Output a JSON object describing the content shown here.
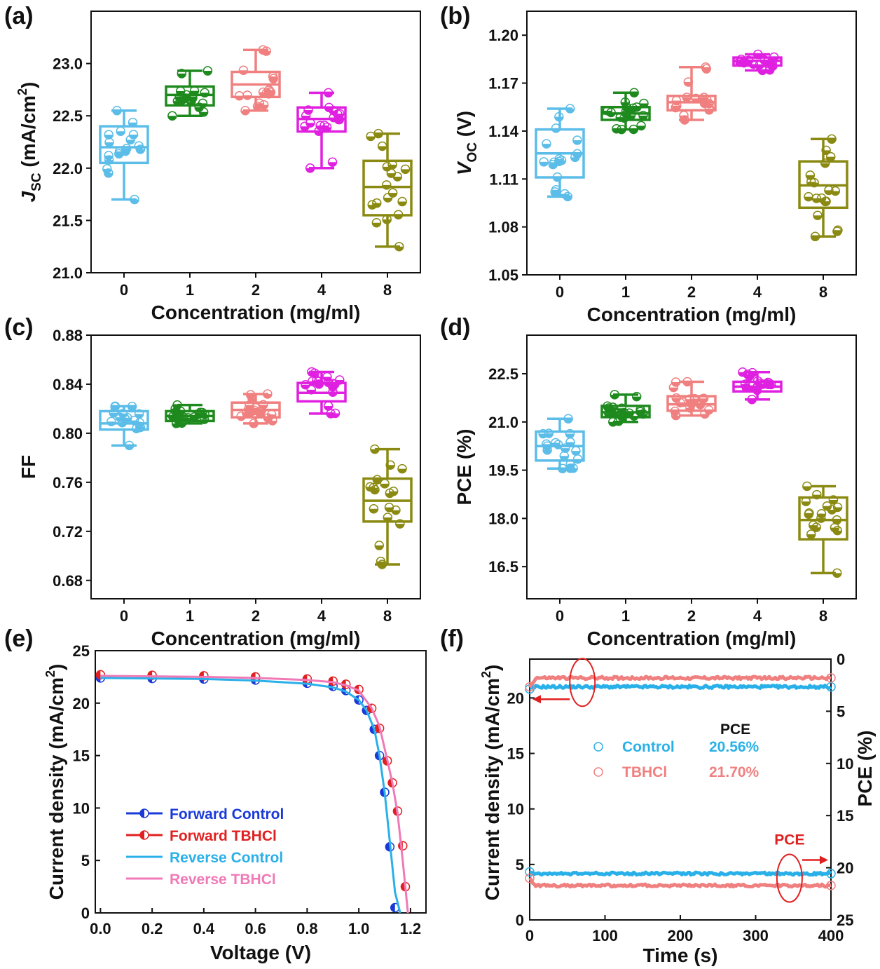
{
  "chart_data": [
    {
      "id": "a",
      "type": "box",
      "panel_label": "(a)",
      "xlabel": "Concentration (mg/ml)",
      "ylabel": "J_SC (mA/cm^2)",
      "ylabel_parts": {
        "main": "J",
        "sub": "SC",
        "unit_before": "(mA/cm",
        "sup": "2",
        "unit_after": ")"
      },
      "categories": [
        "0",
        "1",
        "2",
        "4",
        "8"
      ],
      "colors": [
        "#5bbde8",
        "#1e8a1e",
        "#f08080",
        "#e020e0",
        "#8a8a12"
      ],
      "ylim": [
        21.0,
        23.5
      ],
      "yticks": [
        "21.0",
        "21.5",
        "22.0",
        "22.5",
        "23.0"
      ],
      "ytick_values": [
        21.0,
        21.5,
        22.0,
        22.5,
        23.0
      ],
      "boxes": [
        {
          "min": 21.7,
          "q1": 22.05,
          "median": 22.2,
          "q3": 22.4,
          "max": 22.55
        },
        {
          "min": 22.5,
          "q1": 22.6,
          "median": 22.7,
          "q3": 22.78,
          "max": 22.93
        },
        {
          "min": 22.55,
          "q1": 22.68,
          "median": 22.8,
          "q3": 22.92,
          "max": 23.13
        },
        {
          "min": 22.0,
          "q1": 22.35,
          "median": 22.47,
          "q3": 22.58,
          "max": 22.72
        },
        {
          "min": 21.25,
          "q1": 21.55,
          "median": 21.82,
          "q3": 22.07,
          "max": 22.33
        }
      ]
    },
    {
      "id": "b",
      "type": "box",
      "panel_label": "(b)",
      "xlabel": "Concentration (mg/ml)",
      "ylabel": "V_OC (V)",
      "ylabel_parts": {
        "main": "V",
        "sub": "OC",
        "unit_before": " (V)",
        "sup": "",
        "unit_after": ""
      },
      "categories": [
        "0",
        "1",
        "2",
        "4",
        "8"
      ],
      "colors": [
        "#5bbde8",
        "#1e8a1e",
        "#f08080",
        "#e020e0",
        "#8a8a12"
      ],
      "ylim": [
        1.05,
        1.215
      ],
      "yticks": [
        "1.05",
        "1.08",
        "1.11",
        "1.14",
        "1.17",
        "1.20"
      ],
      "ytick_values": [
        1.05,
        1.08,
        1.11,
        1.14,
        1.17,
        1.2
      ],
      "boxes": [
        {
          "min": 1.099,
          "q1": 1.111,
          "median": 1.126,
          "q3": 1.141,
          "max": 1.154
        },
        {
          "min": 1.141,
          "q1": 1.147,
          "median": 1.151,
          "q3": 1.155,
          "max": 1.164
        },
        {
          "min": 1.147,
          "q1": 1.153,
          "median": 1.158,
          "q3": 1.162,
          "max": 1.18
        },
        {
          "min": 1.178,
          "q1": 1.181,
          "median": 1.184,
          "q3": 1.186,
          "max": 1.188
        },
        {
          "min": 1.074,
          "q1": 1.092,
          "median": 1.106,
          "q3": 1.121,
          "max": 1.135
        }
      ]
    },
    {
      "id": "c",
      "type": "box",
      "panel_label": "(c)",
      "xlabel": "Concentration (mg/ml)",
      "ylabel": "FF",
      "ylabel_parts": {
        "main": "FF",
        "sub": "",
        "unit_before": "",
        "sup": "",
        "unit_after": ""
      },
      "categories": [
        "0",
        "1",
        "2",
        "4",
        "8"
      ],
      "colors": [
        "#5bbde8",
        "#1e8a1e",
        "#f08080",
        "#e020e0",
        "#8a8a12"
      ],
      "ylim": [
        0.665,
        0.88
      ],
      "yticks": [
        "0.68",
        "0.72",
        "0.76",
        "0.80",
        "0.84",
        "0.88"
      ],
      "ytick_values": [
        0.68,
        0.72,
        0.76,
        0.8,
        0.84,
        0.88
      ],
      "boxes": [
        {
          "min": 0.79,
          "q1": 0.803,
          "median": 0.808,
          "q3": 0.818,
          "max": 0.822
        },
        {
          "min": 0.808,
          "q1": 0.81,
          "median": 0.814,
          "q3": 0.818,
          "max": 0.823
        },
        {
          "min": 0.808,
          "q1": 0.813,
          "median": 0.819,
          "q3": 0.825,
          "max": 0.832
        },
        {
          "min": 0.816,
          "q1": 0.826,
          "median": 0.833,
          "q3": 0.841,
          "max": 0.85
        },
        {
          "min": 0.693,
          "q1": 0.728,
          "median": 0.745,
          "q3": 0.763,
          "max": 0.787
        }
      ]
    },
    {
      "id": "d",
      "type": "box",
      "panel_label": "(d)",
      "xlabel": "Concentration (mg/ml)",
      "ylabel": "PCE (%)",
      "ylabel_parts": {
        "main": "PCE (%)",
        "sub": "",
        "unit_before": "",
        "sup": "",
        "unit_after": ""
      },
      "categories": [
        "0",
        "1",
        "2",
        "4",
        "8"
      ],
      "colors": [
        "#5bbde8",
        "#1e8a1e",
        "#f08080",
        "#e020e0",
        "#8a8a12"
      ],
      "ylim": [
        15.5,
        23.7
      ],
      "yticks": [
        "16.5",
        "18.0",
        "19.5",
        "21.0",
        "22.5"
      ],
      "ytick_values": [
        16.5,
        18.0,
        19.5,
        21.0,
        22.5
      ],
      "boxes": [
        {
          "min": 19.55,
          "q1": 19.8,
          "median": 20.25,
          "q3": 20.7,
          "max": 21.1
        },
        {
          "min": 21.0,
          "q1": 21.15,
          "median": 21.3,
          "q3": 21.5,
          "max": 21.85
        },
        {
          "min": 21.2,
          "q1": 21.35,
          "median": 21.55,
          "q3": 21.8,
          "max": 22.25
        },
        {
          "min": 21.7,
          "q1": 21.95,
          "median": 22.1,
          "q3": 22.25,
          "max": 22.55
        },
        {
          "min": 16.3,
          "q1": 17.35,
          "median": 17.95,
          "q3": 18.65,
          "max": 19.0
        }
      ]
    },
    {
      "id": "e",
      "type": "line",
      "panel_label": "(e)",
      "xlabel": "Voltage (V)",
      "ylabel": "Current density (mA/cm^2)",
      "ylabel_parts": {
        "main": "Current density (mA/cm",
        "sup": "2",
        "unit_after": ")"
      },
      "xlim": [
        -0.02,
        1.26
      ],
      "ylim": [
        0,
        25
      ],
      "xticks": [
        "0.0",
        "0.2",
        "0.4",
        "0.6",
        "0.8",
        "1.0",
        "1.2"
      ],
      "xtick_values": [
        0.0,
        0.2,
        0.4,
        0.6,
        0.8,
        1.0,
        1.2
      ],
      "yticks": [
        "0",
        "5",
        "10",
        "15",
        "20",
        "25"
      ],
      "ytick_values": [
        0,
        5,
        10,
        15,
        20,
        25
      ],
      "series": [
        {
          "name": "Forward Control",
          "color": "#1a3ad8",
          "style": "markers",
          "x": [
            0.0,
            0.2,
            0.4,
            0.6,
            0.8,
            0.9,
            0.95,
            1.0,
            1.03,
            1.06,
            1.08,
            1.1,
            1.12,
            1.14
          ],
          "y": [
            22.4,
            22.35,
            22.3,
            22.2,
            21.9,
            21.6,
            21.2,
            20.3,
            19.3,
            17.5,
            15.0,
            11.5,
            6.3,
            0.5
          ]
        },
        {
          "name": "Forward TBHCl",
          "color": "#e02020",
          "style": "markers",
          "x": [
            0.0,
            0.2,
            0.4,
            0.6,
            0.8,
            0.9,
            0.95,
            1.0,
            1.05,
            1.08,
            1.11,
            1.13,
            1.15,
            1.17,
            1.18
          ],
          "y": [
            22.7,
            22.65,
            22.6,
            22.5,
            22.3,
            22.1,
            21.8,
            21.3,
            19.5,
            17.6,
            14.5,
            12.4,
            9.7,
            6.4,
            2.5
          ]
        },
        {
          "name": "Reverse Control",
          "color": "#2ab0e8",
          "style": "line",
          "x": [
            0.0,
            0.2,
            0.4,
            0.6,
            0.8,
            0.9,
            0.95,
            1.0,
            1.03,
            1.06,
            1.08,
            1.1,
            1.12,
            1.14,
            1.16
          ],
          "y": [
            22.4,
            22.35,
            22.3,
            22.15,
            21.85,
            21.5,
            21.1,
            20.3,
            19.3,
            17.5,
            15.0,
            11.5,
            6.8,
            2.0,
            0.0
          ]
        },
        {
          "name": "Reverse TBHCl",
          "color": "#f07ab8",
          "style": "line",
          "x": [
            0.0,
            0.2,
            0.4,
            0.6,
            0.8,
            0.9,
            0.95,
            1.0,
            1.05,
            1.08,
            1.11,
            1.13,
            1.15,
            1.17,
            1.19
          ],
          "y": [
            22.6,
            22.55,
            22.5,
            22.4,
            22.2,
            22.0,
            21.7,
            21.2,
            19.5,
            17.8,
            14.6,
            12.4,
            9.5,
            5.0,
            0.0
          ]
        }
      ]
    },
    {
      "id": "f",
      "type": "line",
      "panel_label": "(f)",
      "xlabel": "Time (s)",
      "ylabel": "Current density (mA/cm^2)",
      "ylabel_parts": {
        "main": "Current density (mA/cm",
        "sup": "2",
        "unit_after": ")"
      },
      "y2label": "PCE (%)",
      "xlim": [
        0,
        400
      ],
      "ylim": [
        0,
        23.5
      ],
      "y2lim": [
        0,
        25
      ],
      "y2_inverted": true,
      "xticks": [
        "0",
        "100",
        "200",
        "300",
        "400"
      ],
      "xtick_values": [
        0,
        100,
        200,
        300,
        400
      ],
      "yticks": [
        "0",
        "5",
        "10",
        "15",
        "20"
      ],
      "ytick_values": [
        0,
        5,
        10,
        15,
        20
      ],
      "y2ticks": [
        "0",
        "5",
        "10",
        "15",
        "20",
        "25"
      ],
      "y2tick_values": [
        0,
        5,
        10,
        15,
        20,
        25
      ],
      "series": [
        {
          "name": "Control",
          "color": "#2ab0e8",
          "axis": "left",
          "level": 21.0,
          "start": 20.8
        },
        {
          "name": "TBHCl",
          "color": "#f08080",
          "axis": "left",
          "level": 21.8,
          "start": 21.0
        },
        {
          "name": "Control",
          "color": "#2ab0e8",
          "axis": "right",
          "level": 20.56,
          "start": 20.4
        },
        {
          "name": "TBHCl",
          "color": "#f08080",
          "axis": "right",
          "level": 21.7,
          "start": 21.0
        }
      ],
      "legend": {
        "header": "PCE",
        "entries": [
          {
            "name": "Control",
            "value": "20.56%",
            "color": "#2ab0e8"
          },
          {
            "name": "TBHCl",
            "value": "21.70%",
            "color": "#f08080"
          }
        ]
      },
      "annotation": "PCE"
    }
  ]
}
